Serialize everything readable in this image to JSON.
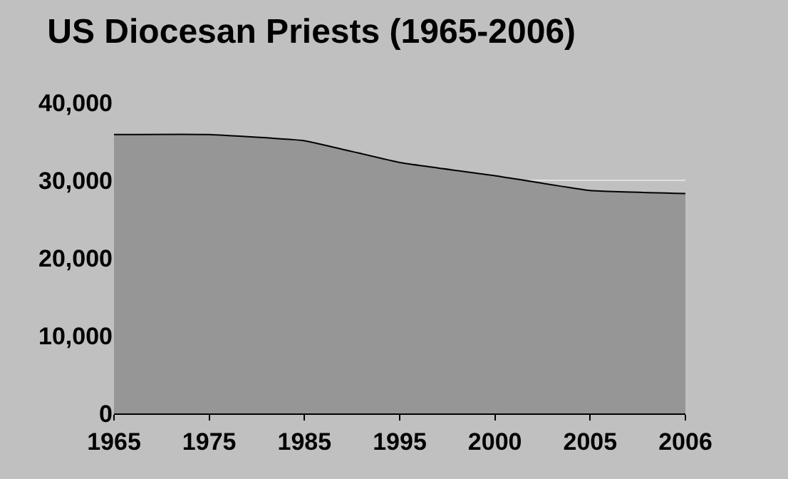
{
  "chart_data": {
    "type": "area",
    "title": "US Diocesan Priests (1965-2006)",
    "categories": [
      "1965",
      "1975",
      "1985",
      "1995",
      "2000",
      "2005",
      "2006"
    ],
    "series": [
      {
        "color": "#969696",
        "values": [
          35900,
          35900,
          35100,
          32300,
          30600,
          28700,
          28300
        ]
      }
    ],
    "ylim": [
      0,
      40000
    ],
    "yticks": [
      {
        "value": 0,
        "label": "0"
      },
      {
        "value": 10000,
        "label": "10,000"
      },
      {
        "value": 20000,
        "label": "20,000"
      },
      {
        "value": 30000,
        "label": "30,000"
      },
      {
        "value": 40000,
        "label": "40,000"
      }
    ],
    "grid": "y"
  }
}
